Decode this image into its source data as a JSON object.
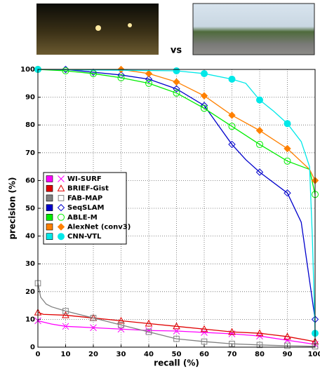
{
  "chart_data": {
    "type": "line",
    "comparison_label": "vs",
    "x_label": "recall (%)",
    "y_label": "precision (%)",
    "xlim": [
      0,
      100
    ],
    "ylim": [
      0,
      100
    ],
    "xticks": [
      0,
      10,
      20,
      30,
      40,
      50,
      60,
      70,
      80,
      90,
      100
    ],
    "yticks": [
      0,
      10,
      20,
      30,
      40,
      50,
      60,
      70,
      80,
      90,
      100
    ],
    "grid": true,
    "legend": "left",
    "series": [
      {
        "name": "WI-SURF",
        "color": "#ff00ff",
        "marker": "x",
        "x": [
          0,
          5,
          10,
          20,
          30,
          40,
          50,
          60,
          70,
          80,
          90,
          100
        ],
        "values": [
          9.5,
          8.3,
          7.5,
          7,
          6.5,
          6,
          5.8,
          5.3,
          4.8,
          4,
          2.5,
          1
        ]
      },
      {
        "name": "BRIEF-Gist",
        "color": "#e00000",
        "marker": "triangle",
        "x": [
          0,
          2,
          10,
          20,
          30,
          40,
          50,
          60,
          70,
          80,
          90,
          100
        ],
        "values": [
          12.5,
          11.8,
          11.5,
          10.5,
          9.5,
          8.5,
          7.5,
          6.5,
          5.5,
          5,
          3.8,
          2
        ]
      },
      {
        "name": "FAB-MAP",
        "color": "#808080",
        "marker": "square",
        "x": [
          0,
          1,
          3,
          5,
          10,
          20,
          30,
          40,
          50,
          60,
          70,
          80,
          90,
          100
        ],
        "values": [
          23,
          18,
          15.5,
          14.5,
          13,
          10.5,
          8,
          5.5,
          3,
          2,
          1.2,
          0.8,
          0.5,
          0.3
        ]
      },
      {
        "name": "SeqSLAM",
        "color": "#0000cc",
        "marker": "diamond",
        "x": [
          0,
          10,
          20,
          30,
          40,
          50,
          60,
          65,
          70,
          75,
          80,
          90,
          95,
          100
        ],
        "values": [
          100,
          100,
          99,
          98,
          96.5,
          93,
          87,
          80,
          73,
          67.5,
          63,
          55.5,
          45,
          10
        ]
      },
      {
        "name": "ABLE-M",
        "color": "#00ee00",
        "marker": "circle",
        "x": [
          0,
          10,
          20,
          30,
          40,
          50,
          60,
          70,
          80,
          90,
          98,
          100
        ],
        "values": [
          100,
          99.5,
          98.5,
          97,
          95,
          91.5,
          86,
          79.5,
          73,
          67,
          64,
          55
        ]
      },
      {
        "name": "AlexNet (conv3)",
        "color": "#ff8000",
        "marker": "filled-diamond",
        "x": [
          0,
          30,
          40,
          50,
          60,
          70,
          80,
          90,
          98,
          100
        ],
        "values": [
          100,
          100,
          98.5,
          95.5,
          90.5,
          83.5,
          78,
          71.5,
          64,
          60
        ]
      },
      {
        "name": "CNN-VTL",
        "color": "#00e8e8",
        "marker": "filled-circle",
        "x": [
          0,
          50,
          60,
          70,
          75,
          80,
          85,
          90,
          95,
          98,
          99,
          100
        ],
        "values": [
          100,
          99.5,
          98.5,
          96.5,
          95,
          89,
          85,
          80.5,
          74,
          65,
          40,
          5
        ]
      }
    ]
  }
}
